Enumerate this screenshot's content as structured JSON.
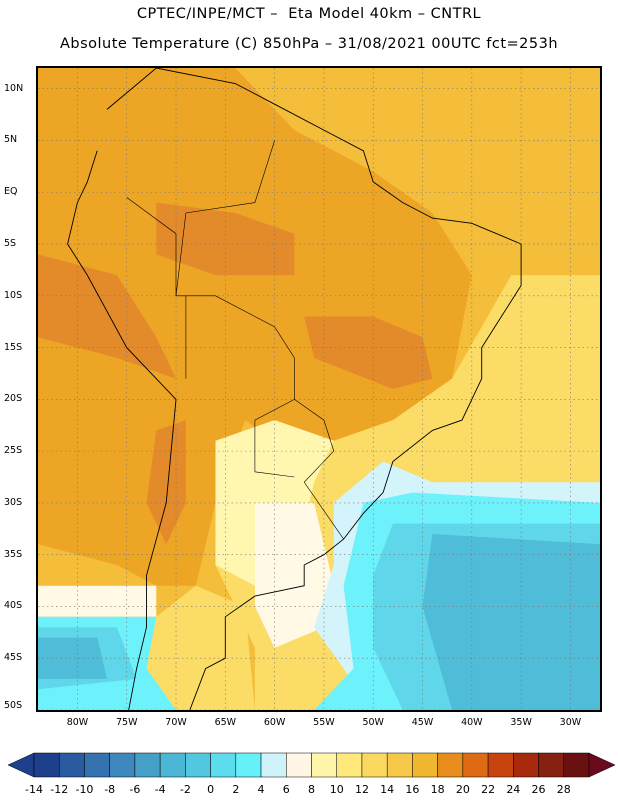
{
  "title_line1": "CPTEC/INPE/MCT –  Eta Model 40km – CNTRL",
  "title_line2": "Absolute Temperature (C) 850hPa – 31/08/2021 00UTC fct=253h",
  "lat_labels": [
    "10N",
    "5N",
    "EQ",
    "5S",
    "10S",
    "15S",
    "20S",
    "25S",
    "30S",
    "35S",
    "40S",
    "45S",
    "50S"
  ],
  "lon_labels": [
    "80W",
    "75W",
    "70W",
    "65W",
    "60W",
    "55W",
    "50W",
    "45W",
    "40W",
    "35W",
    "30W"
  ],
  "colorbar": {
    "labels": [
      "-14",
      "-12",
      "-10",
      "-8",
      "-6",
      "-4",
      "-2",
      "0",
      "2",
      "4",
      "6",
      "8",
      "10",
      "12",
      "14",
      "16",
      "18",
      "20",
      "22",
      "24",
      "26",
      "28"
    ],
    "colors": [
      "#1e3f8c",
      "#2a5aa0",
      "#3572b0",
      "#3e88bd",
      "#45a0c8",
      "#4cb6d6",
      "#52c8e0",
      "#5cdcec",
      "#66f0f8",
      "#cff3fb",
      "#fff6e6",
      "#fff5a8",
      "#ffe97a",
      "#fbd960",
      "#f6c84a",
      "#f2b730",
      "#e88c1e",
      "#de6a14",
      "#c8440e",
      "#a82a0c",
      "#862010",
      "#6a1010"
    ]
  },
  "map": {
    "lon_range": [
      -84,
      -27
    ],
    "lat_range": [
      -50,
      12
    ],
    "palette": {
      "deep_orange": "#e38a2a",
      "orange": "#eda526",
      "light_orange": "#f4bd3a",
      "yellow": "#fbdc66",
      "pale_yellow": "#fff6b0",
      "cream": "#fff9e6",
      "pale_cyan": "#d4f4fb",
      "cyan": "#6df2fb",
      "light_blue": "#5fd6ea",
      "blue": "#4fbcd8"
    }
  }
}
